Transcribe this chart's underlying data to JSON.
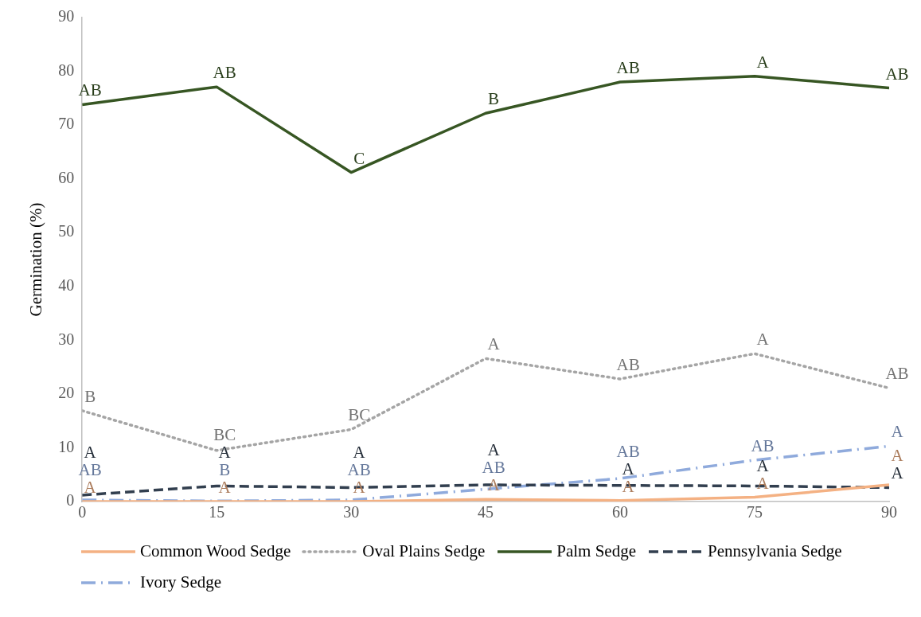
{
  "chart_data": {
    "type": "line",
    "ylabel": "Germination (%)",
    "x": [
      0,
      15,
      30,
      45,
      60,
      75,
      90
    ],
    "xlim": [
      0,
      90
    ],
    "xticks": [
      0,
      15,
      30,
      45,
      60,
      75,
      90
    ],
    "ylim": [
      0,
      90
    ],
    "yticks": [
      0,
      10,
      20,
      30,
      40,
      50,
      60,
      70,
      80,
      90
    ],
    "grid": false,
    "legend": "bottom",
    "marker": "none",
    "series": [
      {
        "name": "Common Wood Sedge",
        "color": "#f4b183",
        "line_style": "solid",
        "values": [
          0,
          0,
          0,
          0.4,
          0.2,
          0.8,
          3.1
        ],
        "value_labels": [
          "A",
          "A",
          "A",
          "A",
          "A",
          "A",
          "A"
        ]
      },
      {
        "name": "Oval Plains Sedge",
        "color": "#a5a5a5",
        "line_style": "dotted",
        "values": [
          16.9,
          9.5,
          13.4,
          26.6,
          22.8,
          27.5,
          21.1
        ],
        "value_labels": [
          "B",
          "BC",
          "BC",
          "A",
          "AB",
          "A",
          "AB"
        ]
      },
      {
        "name": "Palm Sedge",
        "color": "#375623",
        "line_style": "solid",
        "values": [
          73.8,
          77.1,
          61.2,
          72.2,
          78,
          79.1,
          76.9
        ],
        "value_labels": [
          "AB",
          "AB",
          "C",
          "B",
          "AB",
          "A",
          "AB"
        ]
      },
      {
        "name": "Pennsylvania Sedge",
        "color": "#323f4f",
        "line_style": "dashed",
        "values": [
          1.2,
          2.9,
          2.6,
          3.1,
          3,
          2.9,
          2.6
        ],
        "value_labels": [
          "A",
          "A",
          "A",
          "A",
          "A",
          "A",
          "A"
        ]
      },
      {
        "name": "Ivory Sedge",
        "color": "#8faadc",
        "line_style": "dashdot",
        "values": [
          0.3,
          0.1,
          0.3,
          2.3,
          4.3,
          7.7,
          10.3
        ],
        "value_labels": [
          "AB",
          "B",
          "AB",
          "AB",
          "AB",
          "AB",
          "A"
        ]
      }
    ]
  }
}
